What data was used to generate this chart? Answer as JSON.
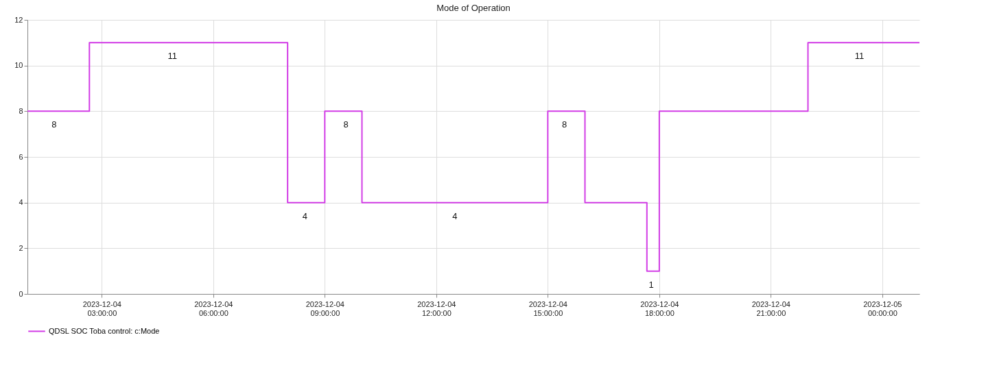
{
  "chart_data": {
    "type": "step",
    "title": "Mode of Operation",
    "x": [
      "2023-12-04T01:00",
      "2023-12-04T02:40",
      "2023-12-04T08:00",
      "2023-12-04T09:00",
      "2023-12-04T10:00",
      "2023-12-04T15:00",
      "2023-12-04T16:00",
      "2023-12-04T17:40",
      "2023-12-04T18:00",
      "2023-12-04T22:00",
      "2023-12-05T01:00"
    ],
    "series": [
      {
        "name": "QDSL SOC Toba control: c:Mode",
        "color": "#d23ce6",
        "values": [
          8,
          11,
          4,
          8,
          4,
          8,
          4,
          1,
          8,
          11,
          11
        ]
      }
    ],
    "xlim": [
      "2023-12-04T01:00",
      "2023-12-05T01:00"
    ],
    "xticks": [
      {
        "value": "2023-12-04T03:00",
        "label": "2023-12-04 03:00:00"
      },
      {
        "value": "2023-12-04T06:00",
        "label": "2023-12-04 06:00:00"
      },
      {
        "value": "2023-12-04T09:00",
        "label": "2023-12-04 09:00:00"
      },
      {
        "value": "2023-12-04T12:00",
        "label": "2023-12-04 12:00:00"
      },
      {
        "value": "2023-12-04T15:00",
        "label": "2023-12-04 15:00:00"
      },
      {
        "value": "2023-12-04T18:00",
        "label": "2023-12-04 18:00:00"
      },
      {
        "value": "2023-12-04T21:00",
        "label": "2023-12-04 21:00:00"
      },
      {
        "value": "2023-12-05T00:00",
        "label": "2023-12-05 00:00:00"
      }
    ],
    "ylim": [
      0,
      12
    ],
    "yticks": [
      0,
      2,
      4,
      6,
      8,
      10,
      12
    ],
    "grid": true,
    "legend": "bottom left",
    "marker": "none",
    "line_style": "solid",
    "annotations": [
      {
        "text": "8",
        "x": "2023-12-04T01:43",
        "y": 8
      },
      {
        "text": "11",
        "x": "2023-12-04T04:54",
        "y": 11
      },
      {
        "text": "4",
        "x": "2023-12-04T08:28",
        "y": 4
      },
      {
        "text": "8",
        "x": "2023-12-04T09:34",
        "y": 8
      },
      {
        "text": "4",
        "x": "2023-12-04T12:30",
        "y": 4
      },
      {
        "text": "8",
        "x": "2023-12-04T15:27",
        "y": 8
      },
      {
        "text": "1",
        "x": "2023-12-04T17:47",
        "y": 1
      },
      {
        "text": "11",
        "x": "2023-12-04T23:23",
        "y": 11
      }
    ]
  }
}
